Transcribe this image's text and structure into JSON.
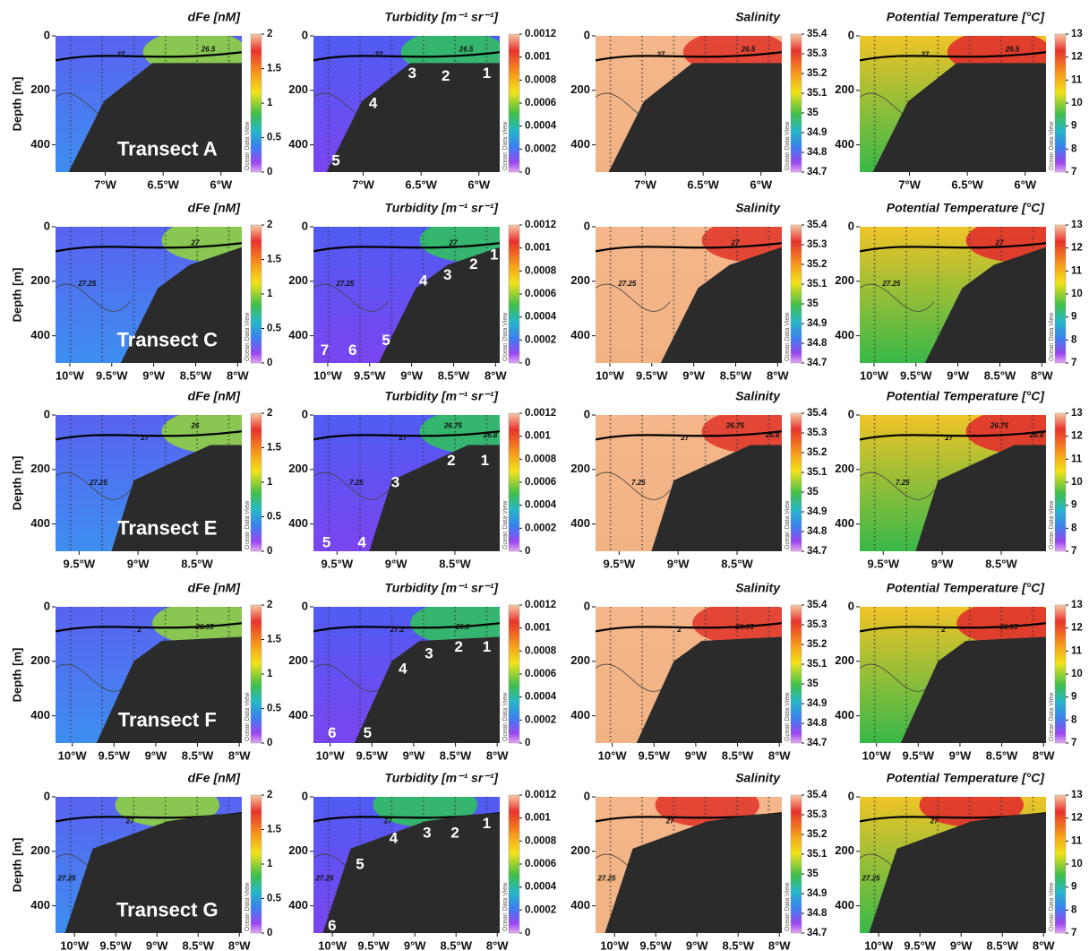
{
  "chart_data": [
    {
      "type": "section",
      "title": "dFe [nM]",
      "ylabel": "Depth [m]",
      "transect": "Transect A",
      "xlim": [
        -7.43,
        -5.82
      ],
      "xticks": [
        {
          "value": -7,
          "label": "7°W"
        },
        {
          "value": -6.5,
          "label": "6.5°W"
        },
        {
          "value": -6,
          "label": "6°W"
        }
      ],
      "ylim": [
        0,
        500
      ],
      "yinvert": true,
      "yticks": [
        0,
        200,
        400
      ],
      "colorbar": {
        "lim": [
          0,
          2
        ],
        "ticks": [
          0,
          0.5,
          1,
          1.5,
          2
        ],
        "credit": "Ocean Data View"
      },
      "contour_labels": [
        "27",
        "26.5"
      ]
    },
    {
      "type": "section",
      "title": "Turbidity [m⁻¹ sr⁻¹]",
      "stations": [
        "3",
        "2",
        "1",
        "4",
        "5"
      ],
      "xlim": [
        -7.43,
        -5.82
      ],
      "xticks": [
        {
          "value": -7,
          "label": "7°W"
        },
        {
          "value": -6.5,
          "label": "6.5°W"
        },
        {
          "value": -6,
          "label": "6°W"
        }
      ],
      "ylim": [
        0,
        500
      ],
      "yinvert": true,
      "yticks": [
        0,
        200,
        400
      ],
      "colorbar": {
        "lim": [
          0,
          0.0012
        ],
        "ticks": [
          0,
          0.0002,
          0.0004,
          0.0006,
          0.0008,
          0.001,
          0.0012
        ],
        "credit": "Ocean Data View"
      },
      "contour_labels": [
        "27",
        "26.5"
      ]
    },
    {
      "type": "section",
      "title": "Salinity",
      "xlim": [
        -7.43,
        -5.82
      ],
      "xticks": [
        {
          "value": -7,
          "label": "7°W"
        },
        {
          "value": -6.5,
          "label": "6.5°W"
        },
        {
          "value": -6,
          "label": "6°W"
        }
      ],
      "ylim": [
        0,
        500
      ],
      "yinvert": true,
      "yticks": [
        0,
        200,
        400
      ],
      "colorbar": {
        "lim": [
          34.7,
          35.4
        ],
        "ticks": [
          34.7,
          34.8,
          34.9,
          35,
          35.1,
          35.2,
          35.3,
          35.4
        ],
        "credit": "Ocean Data View"
      },
      "contour_labels": [
        "27",
        "26.5"
      ]
    },
    {
      "type": "section",
      "title": "Potential Temperature [°C]",
      "xlim": [
        -7.43,
        -5.82
      ],
      "xticks": [
        {
          "value": -7,
          "label": "7°W"
        },
        {
          "value": -6.5,
          "label": "6.5°W"
        },
        {
          "value": -6,
          "label": "6°W"
        }
      ],
      "ylim": [
        0,
        500
      ],
      "yinvert": true,
      "yticks": [
        0,
        200,
        400
      ],
      "colorbar": {
        "lim": [
          7,
          13
        ],
        "ticks": [
          7,
          8,
          9,
          10,
          11,
          12,
          13
        ],
        "credit": "Ocean Data View"
      },
      "contour_labels": [
        "27",
        "26.5"
      ]
    },
    {
      "type": "section",
      "title": "dFe [nM]",
      "ylabel": "Depth [m]",
      "transect": "Transect C",
      "xlim": [
        -10.17,
        -7.95
      ],
      "xticks": [
        {
          "value": -10,
          "label": "10°W"
        },
        {
          "value": -9.5,
          "label": "9.5°W"
        },
        {
          "value": -9,
          "label": "9°W"
        },
        {
          "value": -8.5,
          "label": "8.5°W"
        },
        {
          "value": -8,
          "label": "8°W"
        }
      ],
      "ylim": [
        0,
        500
      ],
      "yinvert": true,
      "yticks": [
        0,
        200,
        400
      ],
      "colorbar": {
        "lim": [
          0,
          2
        ],
        "ticks": [
          0,
          0.5,
          1,
          1.5,
          2
        ],
        "credit": "Ocean Data View"
      },
      "contour_labels": [
        "27.25",
        "27"
      ]
    },
    {
      "type": "section",
      "title": "Turbidity [m⁻¹ sr⁻¹]",
      "stations": [
        "1",
        "2",
        "3",
        "4",
        "5",
        "6",
        "7"
      ],
      "xlim": [
        -10.17,
        -7.95
      ],
      "xticks": [
        {
          "value": -10,
          "label": "10°W"
        },
        {
          "value": -9.5,
          "label": "9.5°W"
        },
        {
          "value": -9,
          "label": "9°W"
        },
        {
          "value": -8.5,
          "label": "8.5°W"
        },
        {
          "value": -8,
          "label": "8°W"
        }
      ],
      "ylim": [
        0,
        500
      ],
      "yinvert": true,
      "yticks": [
        0,
        200,
        400
      ],
      "colorbar": {
        "lim": [
          0,
          0.0012
        ],
        "ticks": [
          0,
          0.0002,
          0.0004,
          0.0006,
          0.0008,
          0.001,
          0.0012
        ],
        "credit": "Ocean Data View"
      },
      "contour_labels": [
        "27.25",
        "27"
      ]
    },
    {
      "type": "section",
      "title": "Salinity",
      "xlim": [
        -10.17,
        -7.95
      ],
      "xticks": [
        {
          "value": -10,
          "label": "10°W"
        },
        {
          "value": -9.5,
          "label": "9.5°W"
        },
        {
          "value": -9,
          "label": "9°W"
        },
        {
          "value": -8.5,
          "label": "8.5°W"
        },
        {
          "value": -8,
          "label": "8°W"
        }
      ],
      "ylim": [
        0,
        500
      ],
      "yinvert": true,
      "yticks": [
        0,
        200,
        400
      ],
      "colorbar": {
        "lim": [
          34.7,
          35.4
        ],
        "ticks": [
          34.7,
          34.8,
          34.9,
          35,
          35.1,
          35.2,
          35.3,
          35.4
        ],
        "credit": "Ocean Data View"
      },
      "contour_labels": [
        "27.25",
        "27"
      ]
    },
    {
      "type": "section",
      "title": "Potential Temperature [°C]",
      "xlim": [
        -10.17,
        -7.95
      ],
      "xticks": [
        {
          "value": -10,
          "label": "10°W"
        },
        {
          "value": -9.5,
          "label": "9.5°W"
        },
        {
          "value": -9,
          "label": "9°W"
        },
        {
          "value": -8.5,
          "label": "8.5°W"
        },
        {
          "value": -8,
          "label": "8°W"
        }
      ],
      "ylim": [
        0,
        500
      ],
      "yinvert": true,
      "yticks": [
        0,
        200,
        400
      ],
      "colorbar": {
        "lim": [
          7,
          13
        ],
        "ticks": [
          7,
          8,
          9,
          10,
          11,
          12,
          13
        ],
        "credit": "Ocean Data View"
      },
      "contour_labels": [
        "27.25",
        "27"
      ]
    },
    {
      "type": "section",
      "title": "dFe [nM]",
      "ylabel": "Depth [m]",
      "transect": "Transect E",
      "xlim": [
        -9.7,
        -8.12
      ],
      "xticks": [
        {
          "value": -9.5,
          "label": "9.5°W"
        },
        {
          "value": -9,
          "label": "9°W"
        },
        {
          "value": -8.5,
          "label": "8.5°W"
        }
      ],
      "ylim": [
        0,
        500
      ],
      "yinvert": true,
      "yticks": [
        0,
        200,
        400
      ],
      "colorbar": {
        "lim": [
          0,
          2
        ],
        "ticks": [
          0,
          0.5,
          1,
          1.5,
          2
        ],
        "credit": "Ocean Data View"
      },
      "contour_labels": [
        "27.25",
        "27",
        "26"
      ]
    },
    {
      "type": "section",
      "title": "Turbidity [m⁻¹ sr⁻¹]",
      "stations": [
        "2",
        "1",
        "3",
        "4",
        "5"
      ],
      "xlim": [
        -9.7,
        -8.12
      ],
      "xticks": [
        {
          "value": -9.5,
          "label": "9.5°W"
        },
        {
          "value": -9,
          "label": "9°W"
        },
        {
          "value": -8.5,
          "label": "8.5°W"
        }
      ],
      "ylim": [
        0,
        500
      ],
      "yinvert": true,
      "yticks": [
        0,
        200,
        400
      ],
      "colorbar": {
        "lim": [
          0,
          0.0012
        ],
        "ticks": [
          0,
          0.0002,
          0.0004,
          0.0006,
          0.0008,
          0.001,
          0.0012
        ],
        "credit": "Ocean Data View"
      },
      "contour_labels": [
        "7.25",
        "27",
        "26.75",
        "26.8"
      ]
    },
    {
      "type": "section",
      "title": "Salinity",
      "xlim": [
        -9.7,
        -8.12
      ],
      "xticks": [
        {
          "value": -9.5,
          "label": "9.5°W"
        },
        {
          "value": -9,
          "label": "9°W"
        },
        {
          "value": -8.5,
          "label": "8.5°W"
        }
      ],
      "ylim": [
        0,
        500
      ],
      "yinvert": true,
      "yticks": [
        0,
        200,
        400
      ],
      "colorbar": {
        "lim": [
          34.7,
          35.4
        ],
        "ticks": [
          34.7,
          34.8,
          34.9,
          35,
          35.1,
          35.2,
          35.3,
          35.4
        ],
        "credit": "Ocean Data View"
      },
      "contour_labels": [
        "7.25",
        "27",
        "26.75",
        "26.8"
      ]
    },
    {
      "type": "section",
      "title": "Potential Temperature [°C]",
      "xlim": [
        -9.7,
        -8.12
      ],
      "xticks": [
        {
          "value": -9.5,
          "label": "9.5°W"
        },
        {
          "value": -9,
          "label": "9°W"
        },
        {
          "value": -8.5,
          "label": "8.5°W"
        }
      ],
      "ylim": [
        0,
        500
      ],
      "yinvert": true,
      "yticks": [
        0,
        200,
        400
      ],
      "colorbar": {
        "lim": [
          7,
          13
        ],
        "ticks": [
          7,
          8,
          9,
          10,
          11,
          12,
          13
        ],
        "credit": "Ocean Data View"
      },
      "contour_labels": [
        "7.25",
        "27",
        "26.75",
        "26.8"
      ]
    },
    {
      "type": "section",
      "title": "dFe [nM]",
      "ylabel": "Depth [m]",
      "transect": "Transect F",
      "xlim": [
        -10.2,
        -7.97
      ],
      "xticks": [
        {
          "value": -10,
          "label": "10°W"
        },
        {
          "value": -9.5,
          "label": "9.5°W"
        },
        {
          "value": -9,
          "label": "9°W"
        },
        {
          "value": -8.5,
          "label": "8.5°W"
        },
        {
          "value": -8,
          "label": "8°W"
        }
      ],
      "ylim": [
        0,
        500
      ],
      "yinvert": true,
      "yticks": [
        0,
        200,
        400
      ],
      "colorbar": {
        "lim": [
          0,
          2
        ],
        "ticks": [
          0,
          0.5,
          1,
          1.5,
          2
        ],
        "credit": "Ocean Data View"
      },
      "contour_labels": [
        "2",
        "26.95"
      ]
    },
    {
      "type": "section",
      "title": "Turbidity [m⁻¹ sr⁻¹]",
      "stations": [
        "1",
        "2",
        "3",
        "4",
        "5",
        "6"
      ],
      "xlim": [
        -10.2,
        -7.97
      ],
      "xticks": [
        {
          "value": -10,
          "label": "10°W"
        },
        {
          "value": -9.5,
          "label": "9.5°W"
        },
        {
          "value": -9,
          "label": "9°W"
        },
        {
          "value": -8.5,
          "label": "8.5°W"
        },
        {
          "value": -8,
          "label": "8°W"
        }
      ],
      "ylim": [
        0,
        500
      ],
      "yinvert": true,
      "yticks": [
        0,
        200,
        400
      ],
      "colorbar": {
        "lim": [
          0,
          0.0012
        ],
        "ticks": [
          0,
          0.0002,
          0.0004,
          0.0006,
          0.0008,
          0.001,
          0.0012
        ],
        "credit": "Ocean Data View"
      },
      "contour_labels": [
        "27.2",
        "26.9"
      ]
    },
    {
      "type": "section",
      "title": "Salinity",
      "xlim": [
        -10.2,
        -7.97
      ],
      "xticks": [
        {
          "value": -10,
          "label": "10°W"
        },
        {
          "value": -9.5,
          "label": "9.5°W"
        },
        {
          "value": -9,
          "label": "9°W"
        },
        {
          "value": -8.5,
          "label": "8.5°W"
        },
        {
          "value": -8,
          "label": "8°W"
        }
      ],
      "ylim": [
        0,
        500
      ],
      "yinvert": true,
      "yticks": [
        0,
        200,
        400
      ],
      "colorbar": {
        "lim": [
          34.7,
          35.4
        ],
        "ticks": [
          34.7,
          34.8,
          34.9,
          35,
          35.1,
          35.2,
          35.3,
          35.4
        ],
        "credit": "Ocean Data View"
      },
      "contour_labels": [
        "2",
        "26.95"
      ]
    },
    {
      "type": "section",
      "title": "Potential Temperature [°C]",
      "xlim": [
        -10.2,
        -7.97
      ],
      "xticks": [
        {
          "value": -10,
          "label": "10°W"
        },
        {
          "value": -9.5,
          "label": "9.5°W"
        },
        {
          "value": -9,
          "label": "9°W"
        },
        {
          "value": -8.5,
          "label": "8.5°W"
        },
        {
          "value": -8,
          "label": "8°W"
        }
      ],
      "ylim": [
        0,
        500
      ],
      "yinvert": true,
      "yticks": [
        0,
        200,
        400
      ],
      "colorbar": {
        "lim": [
          7,
          13
        ],
        "ticks": [
          7,
          8,
          9,
          10,
          11,
          12,
          13
        ],
        "credit": "Ocean Data View"
      },
      "contour_labels": [
        "2",
        "26.95"
      ]
    },
    {
      "type": "section",
      "title": "dFe [nM]",
      "ylabel": "Depth [m]",
      "transect": "Transect G",
      "xlim": [
        -10.23,
        -7.97
      ],
      "xticks": [
        {
          "value": -10,
          "label": "10°W"
        },
        {
          "value": -9.5,
          "label": "9.5°W"
        },
        {
          "value": -9,
          "label": "9°W"
        },
        {
          "value": -8.5,
          "label": "8.5°W"
        },
        {
          "value": -8,
          "label": "8°W"
        }
      ],
      "ylim": [
        0,
        500
      ],
      "yinvert": true,
      "yticks": [
        0,
        200,
        400
      ],
      "colorbar": {
        "lim": [
          0,
          2
        ],
        "ticks": [
          0,
          0.5,
          1,
          1.5,
          2
        ],
        "credit": "Ocean Data View"
      },
      "contour_labels": [
        "27.25",
        "27"
      ]
    },
    {
      "type": "section",
      "title": "Turbidity [m⁻¹ sr⁻¹]",
      "stations": [
        "1",
        "2",
        "3",
        "4",
        "5",
        "6"
      ],
      "xlim": [
        -10.23,
        -7.97
      ],
      "xticks": [
        {
          "value": -10,
          "label": "10°W"
        },
        {
          "value": -9.5,
          "label": "9.5°W"
        },
        {
          "value": -9,
          "label": "9°W"
        },
        {
          "value": -8.5,
          "label": "8.5°W"
        },
        {
          "value": -8,
          "label": "8°W"
        }
      ],
      "ylim": [
        0,
        500
      ],
      "yinvert": true,
      "yticks": [
        0,
        200,
        400
      ],
      "colorbar": {
        "lim": [
          0,
          0.0012
        ],
        "ticks": [
          0,
          0.0002,
          0.0004,
          0.0006,
          0.0008,
          0.001,
          0.0012
        ],
        "credit": "Ocean Data View"
      },
      "contour_labels": [
        "27.25",
        "27"
      ]
    },
    {
      "type": "section",
      "title": "Salinity",
      "xlim": [
        -10.23,
        -7.97
      ],
      "xticks": [
        {
          "value": -10,
          "label": "10°W"
        },
        {
          "value": -9.5,
          "label": "9.5°W"
        },
        {
          "value": -9,
          "label": "9°W"
        },
        {
          "value": -8.5,
          "label": "8.5°W"
        },
        {
          "value": -8,
          "label": "8°W"
        }
      ],
      "ylim": [
        0,
        500
      ],
      "yinvert": true,
      "yticks": [
        0,
        200,
        400
      ],
      "colorbar": {
        "lim": [
          34.7,
          35.4
        ],
        "ticks": [
          34.7,
          34.8,
          34.9,
          35,
          35.1,
          35.2,
          35.3,
          35.4
        ],
        "credit": "Ocean Data View"
      },
      "contour_labels": [
        "27.25",
        "27"
      ]
    },
    {
      "type": "section",
      "title": "Potential Temperature [°C]",
      "xlim": [
        -10.23,
        -7.97
      ],
      "xticks": [
        {
          "value": -10,
          "label": "10°W"
        },
        {
          "value": -9.5,
          "label": "9.5°W"
        },
        {
          "value": -9,
          "label": "9°W"
        },
        {
          "value": -8.5,
          "label": "8.5°W"
        },
        {
          "value": -8,
          "label": "8°W"
        }
      ],
      "ylim": [
        0,
        500
      ],
      "yinvert": true,
      "yticks": [
        0,
        200,
        400
      ],
      "colorbar": {
        "lim": [
          7,
          13
        ],
        "ticks": [
          7,
          8,
          9,
          10,
          11,
          12,
          13
        ],
        "credit": "Ocean Data View"
      },
      "contour_labels": [
        "27.25",
        "27"
      ]
    }
  ]
}
